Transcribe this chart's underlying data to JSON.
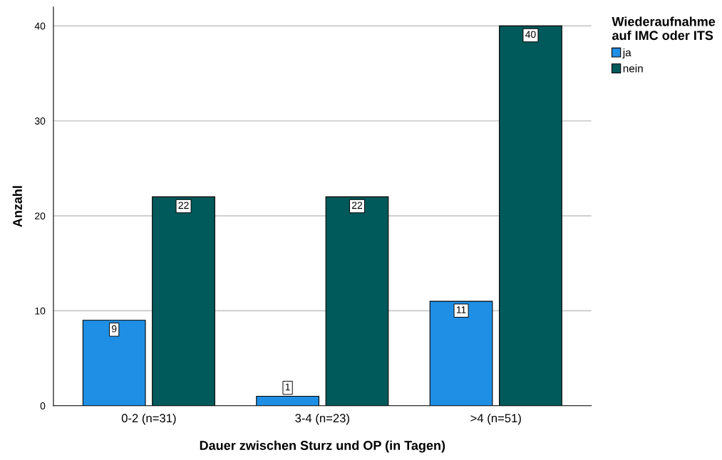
{
  "chart_data": {
    "type": "bar",
    "xlabel": "Dauer zwischen Sturz und OP (in Tagen)",
    "ylabel": "Anzahl",
    "legend_title": "Wiederaufnahme\nauf IMC oder ITS",
    "categories": [
      "0-2 (n=31)",
      "3-4 (n=23)",
      ">4 (n=51)"
    ],
    "series": [
      {
        "name": "ja",
        "color": "#1f8fe5",
        "values": [
          9,
          1,
          11
        ]
      },
      {
        "name": "nein",
        "color": "#00595a",
        "values": [
          22,
          22,
          40
        ]
      }
    ],
    "ylim": [
      0,
      42
    ],
    "yticks": [
      0,
      10,
      20,
      30,
      40
    ],
    "grid": "y",
    "legend": "top right",
    "data_labels": true
  }
}
